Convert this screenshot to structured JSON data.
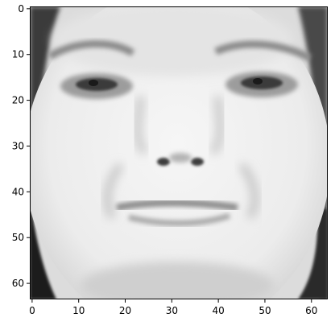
{
  "chart_data": {
    "type": "heatmap",
    "title": "",
    "xlabel": "",
    "ylabel": "",
    "colormap": "gray",
    "image_shape": [
      64,
      64
    ],
    "xlim": [
      -0.5,
      63.5
    ],
    "ylim": [
      63.5,
      -0.5
    ],
    "x_ticks": [
      0,
      10,
      20,
      30,
      40,
      50,
      60
    ],
    "y_ticks": [
      0,
      10,
      20,
      30,
      40,
      50,
      60
    ],
    "x_tick_labels": [
      "0",
      "10",
      "20",
      "30",
      "40",
      "50",
      "60"
    ],
    "y_tick_labels": [
      "0",
      "10",
      "20",
      "30",
      "40",
      "50",
      "60"
    ],
    "grid": false,
    "content": "grayscale face image"
  }
}
